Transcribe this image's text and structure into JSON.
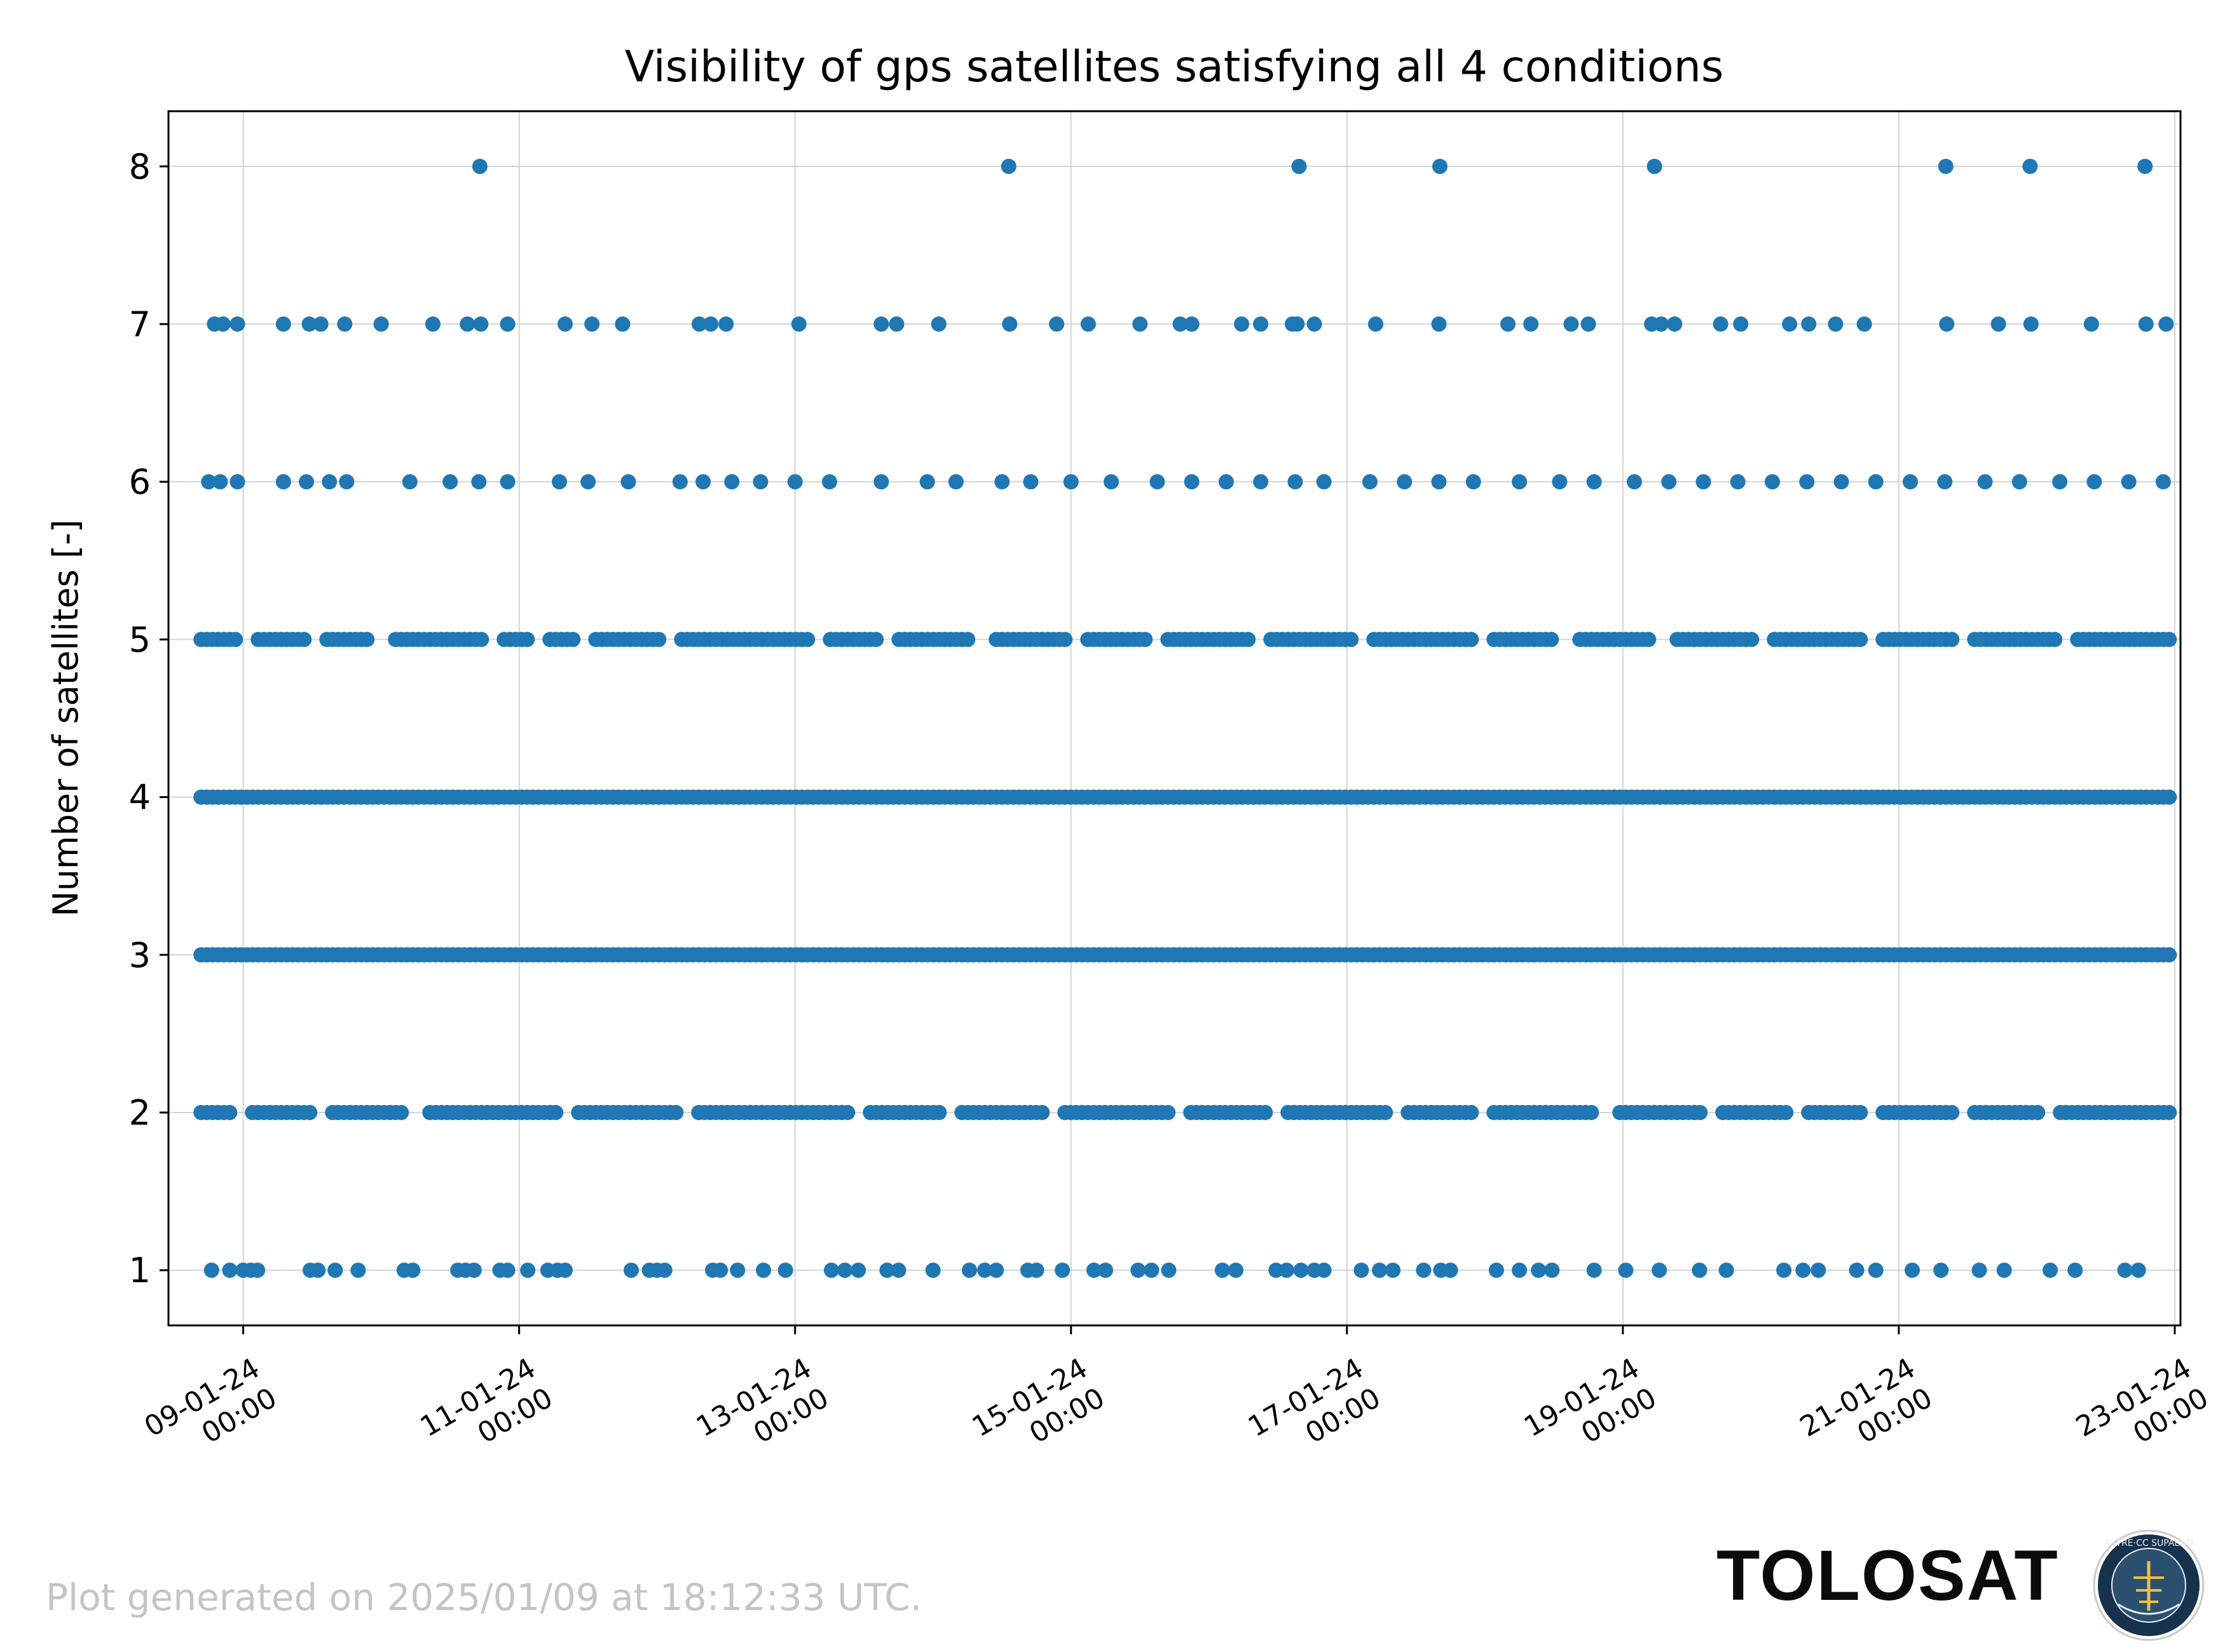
{
  "chart_data": {
    "type": "scatter",
    "title": "Visibility of gps satellites satisfying all 4 conditions",
    "xlabel": "",
    "ylabel": "Number of satellites [-]",
    "x_axis_type": "datetime",
    "xlim": [
      "2024-01-08T11:00",
      "2024-01-23T01:00"
    ],
    "ylim": [
      0.65,
      8.35
    ],
    "x_ticks": [
      {
        "date": "2024-01-09T00:00",
        "line1": "09-01-24",
        "line2": "00:00"
      },
      {
        "date": "2024-01-11T00:00",
        "line1": "11-01-24",
        "line2": "00:00"
      },
      {
        "date": "2024-01-13T00:00",
        "line1": "13-01-24",
        "line2": "00:00"
      },
      {
        "date": "2024-01-15T00:00",
        "line1": "15-01-24",
        "line2": "00:00"
      },
      {
        "date": "2024-01-17T00:00",
        "line1": "17-01-24",
        "line2": "00:00"
      },
      {
        "date": "2024-01-19T00:00",
        "line1": "19-01-24",
        "line2": "00:00"
      },
      {
        "date": "2024-01-21T00:00",
        "line1": "21-01-24",
        "line2": "00:00"
      },
      {
        "date": "2024-01-23T00:00",
        "line1": "23-01-24",
        "line2": "00:00"
      }
    ],
    "y_ticks": [
      1,
      2,
      3,
      4,
      5,
      6,
      7,
      8
    ],
    "grid": true,
    "marker_color": "#1f77b4",
    "data_span": [
      "2024-01-08T16:40",
      "2024-01-22T23:10"
    ],
    "series": [
      {
        "values_by_y": {
          "8": [
            "2024-01-10T17:10",
            "2024-01-14T13:10",
            "2024-01-16T15:40",
            "2024-01-17T16:10",
            "2024-01-19T05:30",
            "2024-01-21T08:10",
            "2024-01-21T22:50",
            "2024-01-22T18:50"
          ],
          "7": [
            "2024-01-08T19:00",
            "2024-01-08T20:30",
            "2024-01-08T23:00",
            "2024-01-09T07:00",
            "2024-01-09T11:30",
            "2024-01-09T13:30",
            "2024-01-09T17:40",
            "2024-01-10T00:00",
            "2024-01-10T09:00",
            "2024-01-10T15:00",
            "2024-01-10T17:20",
            "2024-01-10T22:00",
            "2024-01-11T08:00",
            "2024-01-11T12:40",
            "2024-01-11T18:00",
            "2024-01-12T07:20",
            "2024-01-12T09:20",
            "2024-01-12T12:00",
            "2024-01-13T00:40",
            "2024-01-13T15:00",
            "2024-01-13T17:40",
            "2024-01-14T01:00",
            "2024-01-14T13:20",
            "2024-01-14T21:30",
            "2024-01-15T03:00",
            "2024-01-15T12:00",
            "2024-01-15T19:00",
            "2024-01-15T21:00",
            "2024-01-16T05:40",
            "2024-01-16T09:00",
            "2024-01-16T14:30",
            "2024-01-16T15:20",
            "2024-01-16T18:20",
            "2024-01-17T05:00",
            "2024-01-17T16:00",
            "2024-01-18T04:00",
            "2024-01-18T08:00",
            "2024-01-18T15:00",
            "2024-01-18T18:00",
            "2024-01-19T05:00",
            "2024-01-19T06:40",
            "2024-01-19T09:00",
            "2024-01-19T17:00",
            "2024-01-19T20:30",
            "2024-01-20T05:00",
            "2024-01-20T08:20",
            "2024-01-20T13:00",
            "2024-01-20T18:00",
            "2024-01-21T08:20",
            "2024-01-21T17:20",
            "2024-01-21T23:00",
            "2024-01-22T09:30",
            "2024-01-22T19:00",
            "2024-01-22T22:30"
          ],
          "6": [
            "2024-01-08T18:00",
            "2024-01-08T20:00",
            "2024-01-08T23:00",
            "2024-01-09T07:00",
            "2024-01-09T11:00",
            "2024-01-09T15:00",
            "2024-01-09T18:00",
            "2024-01-10T05:00",
            "2024-01-10T12:00",
            "2024-01-10T17:00",
            "2024-01-10T22:00",
            "2024-01-11T07:00",
            "2024-01-11T12:00",
            "2024-01-11T19:00",
            "2024-01-12T04:00",
            "2024-01-12T08:00",
            "2024-01-12T13:00",
            "2024-01-12T18:00",
            "2024-01-13T00:00",
            "2024-01-13T06:00",
            "2024-01-13T15:00",
            "2024-01-13T23:00",
            "2024-01-14T04:00",
            "2024-01-14T12:00",
            "2024-01-14T17:00",
            "2024-01-15T00:00",
            "2024-01-15T07:00",
            "2024-01-15T15:00",
            "2024-01-15T21:00",
            "2024-01-16T03:00",
            "2024-01-16T09:00",
            "2024-01-16T15:00",
            "2024-01-16T20:00",
            "2024-01-17T04:00",
            "2024-01-17T10:00",
            "2024-01-17T16:00",
            "2024-01-17T22:00",
            "2024-01-18T06:00",
            "2024-01-18T13:00",
            "2024-01-18T19:00",
            "2024-01-19T02:00",
            "2024-01-19T08:00",
            "2024-01-19T14:00",
            "2024-01-19T20:00",
            "2024-01-20T02:00",
            "2024-01-20T08:00",
            "2024-01-20T14:00",
            "2024-01-20T20:00",
            "2024-01-21T02:00",
            "2024-01-21T08:00",
            "2024-01-21T15:00",
            "2024-01-21T21:00",
            "2024-01-22T04:00",
            "2024-01-22T10:00",
            "2024-01-22T16:00",
            "2024-01-22T22:00"
          ],
          "5": {
            "continuous": true,
            "gaps": [
              "2024-01-09T00:30",
              "2024-01-09T13:00",
              "2024-01-10T00:00",
              "2024-01-10T19:30",
              "2024-01-11T03:00",
              "2024-01-11T11:00",
              "2024-01-12T02:30",
              "2024-01-13T04:30",
              "2024-01-13T16:00",
              "2024-01-14T08:30",
              "2024-01-15T00:30",
              "2024-01-15T15:00",
              "2024-01-16T09:00",
              "2024-01-17T03:00",
              "2024-01-17T23:30",
              "2024-01-18T14:00",
              "2024-01-19T07:00",
              "2024-01-20T00:00",
              "2024-01-20T19:30",
              "2024-01-21T11:00",
              "2024-01-22T05:30"
            ]
          },
          "4": {
            "continuous": true,
            "gaps": []
          },
          "3": {
            "continuous": true,
            "gaps": []
          },
          "2": {
            "continuous": true,
            "gaps": [
              "2024-01-08T23:30",
              "2024-01-09T14:00",
              "2024-01-10T06:00",
              "2024-01-11T08:00",
              "2024-01-12T05:00",
              "2024-01-13T11:00",
              "2024-01-14T03:00",
              "2024-01-14T21:00",
              "2024-01-15T19:00",
              "2024-01-16T12:00",
              "2024-01-17T09:00",
              "2024-01-17T23:30",
              "2024-01-18T21:00",
              "2024-01-19T15:00",
              "2024-01-20T06:00",
              "2024-01-20T19:00",
              "2024-01-21T11:00",
              "2024-01-22T02:00"
            ]
          },
          "1": [
            "2024-01-08T18:30",
            "2024-01-08T21:40",
            "2024-01-09T00:00",
            "2024-01-09T01:20",
            "2024-01-09T02:30",
            "2024-01-09T11:40",
            "2024-01-09T13:00",
            "2024-01-09T16:00",
            "2024-01-09T20:00",
            "2024-01-10T04:00",
            "2024-01-10T05:30",
            "2024-01-10T13:20",
            "2024-01-10T14:40",
            "2024-01-10T16:10",
            "2024-01-10T20:40",
            "2024-01-10T22:00",
            "2024-01-11T01:30",
            "2024-01-11T05:00",
            "2024-01-11T06:40",
            "2024-01-11T08:00",
            "2024-01-11T19:30",
            "2024-01-11T22:40",
            "2024-01-12T00:00",
            "2024-01-12T01:20",
            "2024-01-12T09:40",
            "2024-01-12T11:00",
            "2024-01-12T14:00",
            "2024-01-12T18:30",
            "2024-01-12T22:20",
            "2024-01-13T06:20",
            "2024-01-13T08:40",
            "2024-01-13T11:00",
            "2024-01-13T16:00",
            "2024-01-13T18:00",
            "2024-01-14T00:00",
            "2024-01-14T06:20",
            "2024-01-14T09:00",
            "2024-01-14T11:00",
            "2024-01-14T16:30",
            "2024-01-14T18:00",
            "2024-01-14T22:30",
            "2024-01-15T04:00",
            "2024-01-15T06:00",
            "2024-01-15T11:40",
            "2024-01-15T14:00",
            "2024-01-15T17:00",
            "2024-01-16T02:20",
            "2024-01-16T04:40",
            "2024-01-16T11:40",
            "2024-01-16T13:30",
            "2024-01-16T16:00",
            "2024-01-16T18:20",
            "2024-01-16T20:00",
            "2024-01-17T02:30",
            "2024-01-17T05:40",
            "2024-01-17T08:00",
            "2024-01-17T13:20",
            "2024-01-17T16:20",
            "2024-01-17T18:00",
            "2024-01-18T02:00",
            "2024-01-18T06:00",
            "2024-01-18T09:20",
            "2024-01-18T11:40",
            "2024-01-18T19:00",
            "2024-01-19T00:30",
            "2024-01-19T06:20",
            "2024-01-19T13:20",
            "2024-01-19T18:00",
            "2024-01-20T04:00",
            "2024-01-20T07:20",
            "2024-01-20T10:00",
            "2024-01-20T16:40",
            "2024-01-20T20:00",
            "2024-01-21T02:20",
            "2024-01-21T07:20",
            "2024-01-21T14:00",
            "2024-01-21T18:20",
            "2024-01-22T02:20",
            "2024-01-22T06:40",
            "2024-01-22T15:20",
            "2024-01-22T17:40"
          ]
        }
      }
    ]
  },
  "footer": {
    "generated_text": "Plot generated on 2025/01/09 at 18:12:33 UTC.",
    "brand_name": "TOLOSAT",
    "logo_ring_text": "ASTRE·CC SUPAERO"
  }
}
